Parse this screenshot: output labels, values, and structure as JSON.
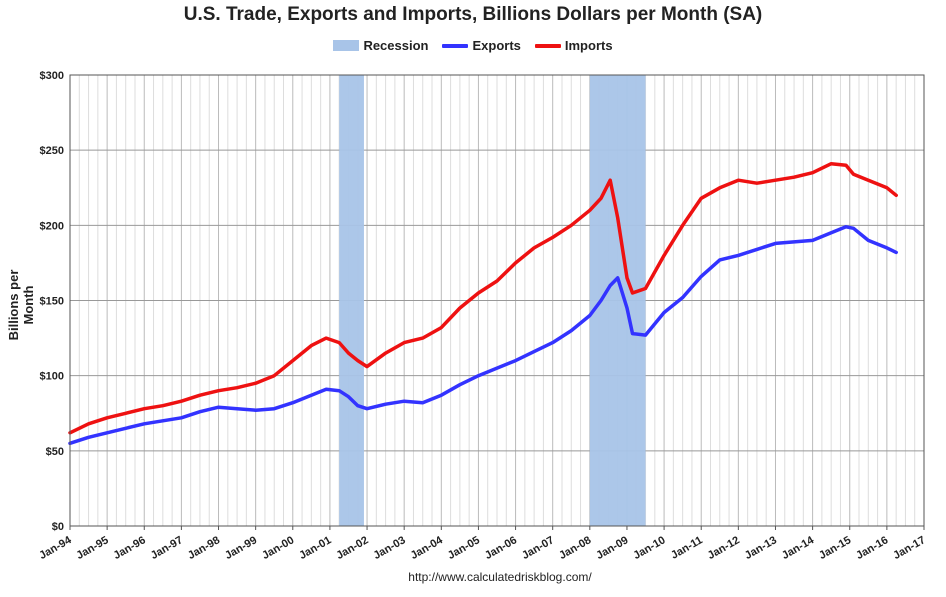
{
  "chart_data": {
    "type": "line",
    "title": "U.S. Trade, Exports and Imports, Billions Dollars per Month (SA)",
    "ylabel": "Billions per Month",
    "source": "http://www.calculatedriskblog.com/",
    "ylim": [
      0,
      300
    ],
    "y_ticks": [
      0,
      50,
      100,
      150,
      200,
      250,
      300
    ],
    "y_tick_labels": [
      "$0",
      "$50",
      "$100",
      "$150",
      "$200",
      "$250",
      "$300"
    ],
    "x_ticks": [
      "Jan-94",
      "Jan-95",
      "Jan-96",
      "Jan-97",
      "Jan-98",
      "Jan-99",
      "Jan-00",
      "Jan-01",
      "Jan-02",
      "Jan-03",
      "Jan-04",
      "Jan-05",
      "Jan-06",
      "Jan-07",
      "Jan-08",
      "Jan-09",
      "Jan-10",
      "Jan-11",
      "Jan-12",
      "Jan-13",
      "Jan-14",
      "Jan-15",
      "Jan-16",
      "Jan-17"
    ],
    "xlim": [
      1994.0,
      2017.0
    ],
    "grid": true,
    "legend_position": "top-center",
    "recessions": [
      {
        "start": 2001.25,
        "end": 2001.917
      },
      {
        "start": 2008.0,
        "end": 2009.5
      }
    ],
    "series": [
      {
        "name": "Recession",
        "color": "#a8c4e8",
        "kind": "band"
      },
      {
        "name": "Exports",
        "color": "#3333ff",
        "x": [
          1994.0,
          1994.25,
          1994.5,
          1995.0,
          1995.5,
          1996.0,
          1996.5,
          1997.0,
          1997.5,
          1998.0,
          1998.5,
          1999.0,
          1999.5,
          2000.0,
          2000.5,
          2000.9,
          2001.25,
          2001.5,
          2001.75,
          2002.0,
          2002.5,
          2003.0,
          2003.5,
          2004.0,
          2004.5,
          2005.0,
          2005.5,
          2006.0,
          2006.5,
          2007.0,
          2007.5,
          2008.0,
          2008.3,
          2008.55,
          2008.75,
          2009.0,
          2009.15,
          2009.5,
          2010.0,
          2010.5,
          2011.0,
          2011.5,
          2012.0,
          2012.5,
          2013.0,
          2013.5,
          2014.0,
          2014.5,
          2014.9,
          2015.1,
          2015.5,
          2016.0,
          2016.25
        ],
        "values": [
          55,
          57,
          59,
          62,
          65,
          68,
          70,
          72,
          76,
          79,
          78,
          77,
          78,
          82,
          87,
          91,
          90,
          86,
          80,
          78,
          81,
          83,
          82,
          87,
          94,
          100,
          105,
          110,
          116,
          122,
          130,
          140,
          150,
          160,
          165,
          145,
          128,
          127,
          142,
          152,
          166,
          177,
          180,
          184,
          188,
          189,
          190,
          195,
          199,
          198,
          190,
          185,
          182
        ]
      },
      {
        "name": "Imports",
        "color": "#ee1111",
        "x": [
          1994.0,
          1994.25,
          1994.5,
          1995.0,
          1995.5,
          1996.0,
          1996.5,
          1997.0,
          1997.5,
          1998.0,
          1998.5,
          1999.0,
          1999.5,
          2000.0,
          2000.5,
          2000.9,
          2001.25,
          2001.5,
          2001.75,
          2002.0,
          2002.5,
          2003.0,
          2003.5,
          2004.0,
          2004.5,
          2005.0,
          2005.5,
          2006.0,
          2006.5,
          2007.0,
          2007.5,
          2008.0,
          2008.3,
          2008.55,
          2008.75,
          2009.0,
          2009.15,
          2009.5,
          2010.0,
          2010.5,
          2011.0,
          2011.5,
          2012.0,
          2012.5,
          2013.0,
          2013.5,
          2014.0,
          2014.5,
          2014.9,
          2015.1,
          2015.5,
          2016.0,
          2016.25
        ],
        "values": [
          62,
          65,
          68,
          72,
          75,
          78,
          80,
          83,
          87,
          90,
          92,
          95,
          100,
          110,
          120,
          125,
          122,
          115,
          110,
          106,
          115,
          122,
          125,
          132,
          145,
          155,
          163,
          175,
          185,
          192,
          200,
          210,
          218,
          230,
          205,
          165,
          155,
          158,
          180,
          200,
          218,
          225,
          230,
          228,
          230,
          232,
          235,
          241,
          240,
          234,
          230,
          225,
          220
        ]
      }
    ]
  }
}
